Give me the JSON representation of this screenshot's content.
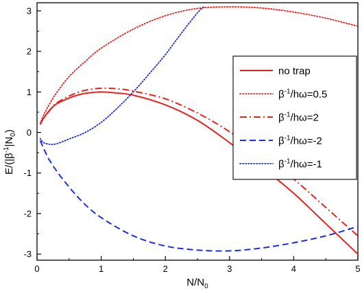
{
  "chart_data": {
    "type": "line",
    "xlabel": {
      "main": "N/N",
      "sub": "0"
    },
    "ylabel": {
      "pre": "E/(|β",
      "sup": "-1",
      "mid": "|N",
      "sub": "0",
      "post": ")"
    },
    "xlim": [
      0,
      5
    ],
    "ylim": [
      -3.15,
      3.2
    ],
    "xticks": [
      0,
      1,
      2,
      3,
      4,
      5
    ],
    "yticks": [
      -3,
      -2,
      -1,
      0,
      1,
      2,
      3
    ],
    "xtick_labels": [
      "0",
      "1",
      "2",
      "3",
      "4",
      "5"
    ],
    "ytick_labels": [
      "-3",
      "-2",
      "-1",
      "0",
      "1",
      "2",
      "3"
    ],
    "grid": false,
    "legend_placement": "right",
    "series": [
      {
        "name": "no trap",
        "label": {
          "pre": "no trap"
        },
        "color": "#e8211f",
        "style": "solid",
        "x": [
          0.05,
          0.1,
          0.2,
          0.3,
          0.5,
          0.7,
          0.9,
          1.0,
          1.2,
          1.5,
          2.0,
          2.5,
          3.0,
          3.5,
          4.0,
          4.5,
          5.0
        ],
        "y": [
          0.2,
          0.35,
          0.55,
          0.7,
          0.85,
          0.95,
          0.99,
          1.0,
          0.98,
          0.92,
          0.68,
          0.3,
          -0.25,
          -0.85,
          -1.5,
          -2.25,
          -3.0
        ]
      },
      {
        "name": "β-1/hω=0.5",
        "label": {
          "pre": "β",
          "sup": "-1",
          "post": "/hω=0.5"
        },
        "color": "#e8211f",
        "style": "dotted",
        "x": [
          0.05,
          0.1,
          0.2,
          0.3,
          0.5,
          0.75,
          1.0,
          1.5,
          2.0,
          2.5,
          3.0,
          3.5,
          4.0,
          4.5,
          5.0
        ],
        "y": [
          0.22,
          0.42,
          0.72,
          0.97,
          1.38,
          1.75,
          2.08,
          2.55,
          2.88,
          3.06,
          3.1,
          3.07,
          2.97,
          2.82,
          2.62
        ]
      },
      {
        "name": "β-1/hω=2",
        "label": {
          "pre": "β",
          "sup": "-1",
          "post": "/hω=2"
        },
        "color": "#e8211f",
        "style": "dashdot",
        "x": [
          0.05,
          0.1,
          0.2,
          0.3,
          0.5,
          0.7,
          0.9,
          1.1,
          1.3,
          1.5,
          2.0,
          2.5,
          3.0,
          3.5,
          4.0,
          4.5,
          5.0
        ],
        "y": [
          0.2,
          0.35,
          0.56,
          0.72,
          0.9,
          1.02,
          1.08,
          1.09,
          1.07,
          1.02,
          0.83,
          0.48,
          0.02,
          -0.55,
          -1.15,
          -1.85,
          -2.55
        ]
      },
      {
        "name": "β-1/hω=-2",
        "label": {
          "pre": "β",
          "sup": "-1",
          "post": "/hω=-2"
        },
        "color": "#1a2ee0",
        "style": "dashed",
        "x": [
          0.05,
          0.1,
          0.2,
          0.4,
          0.7,
          1.0,
          1.5,
          2.0,
          2.5,
          3.0,
          3.5,
          4.0,
          4.5,
          5.0
        ],
        "y": [
          -0.2,
          -0.38,
          -0.7,
          -1.15,
          -1.7,
          -2.1,
          -2.55,
          -2.8,
          -2.9,
          -2.92,
          -2.85,
          -2.72,
          -2.55,
          -2.32
        ]
      },
      {
        "name": "β-1/hω=-1",
        "label": {
          "pre": "β",
          "sup": "-1",
          "post": "/hω=-1"
        },
        "color": "#1a2ee0",
        "style": "dotted",
        "x": [
          0.05,
          0.1,
          0.2,
          0.3,
          0.5,
          0.75,
          1.0,
          1.25,
          1.5,
          1.75,
          2.0,
          2.25,
          2.5,
          2.6
        ],
        "y": [
          -0.15,
          -0.25,
          -0.29,
          -0.28,
          -0.16,
          0.0,
          0.25,
          0.6,
          1.0,
          1.45,
          1.92,
          2.45,
          2.95,
          3.1
        ]
      }
    ]
  }
}
